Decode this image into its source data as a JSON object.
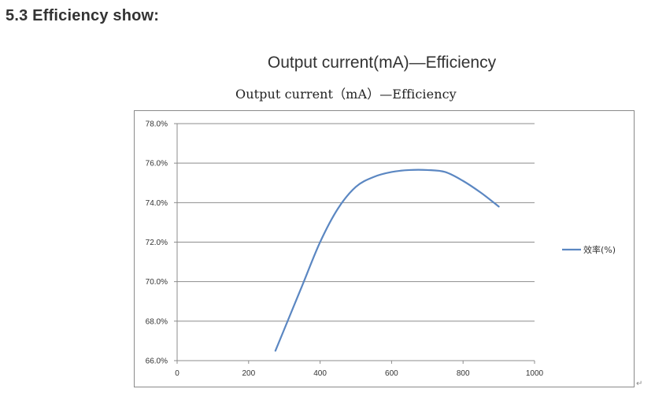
{
  "section_heading": "5.3 Efficiency show:",
  "chart_data": {
    "type": "line",
    "title": "Output current(mA)—Efficiency",
    "subtitle": "Output current（mA）—Efficiency",
    "xlabel": "",
    "ylabel": "",
    "xlim": [
      0,
      1000
    ],
    "ylim": [
      66.0,
      78.0
    ],
    "x_ticks": [
      "0",
      "200",
      "400",
      "600",
      "800",
      "1000"
    ],
    "y_ticks": [
      "66.0%",
      "68.0%",
      "70.0%",
      "72.0%",
      "74.0%",
      "76.0%",
      "78.0%"
    ],
    "grid": true,
    "legend_position": "right",
    "series": [
      {
        "name": "效率(%)",
        "color": "#5b87c2",
        "x": [
          275,
          300,
          350,
          400,
          450,
          500,
          550,
          600,
          650,
          700,
          750,
          800,
          850,
          900
        ],
        "y": [
          66.5,
          67.6,
          69.8,
          72.0,
          73.7,
          74.8,
          75.3,
          75.55,
          75.65,
          75.65,
          75.55,
          75.1,
          74.5,
          73.8
        ]
      }
    ]
  },
  "return_mark": "↵"
}
